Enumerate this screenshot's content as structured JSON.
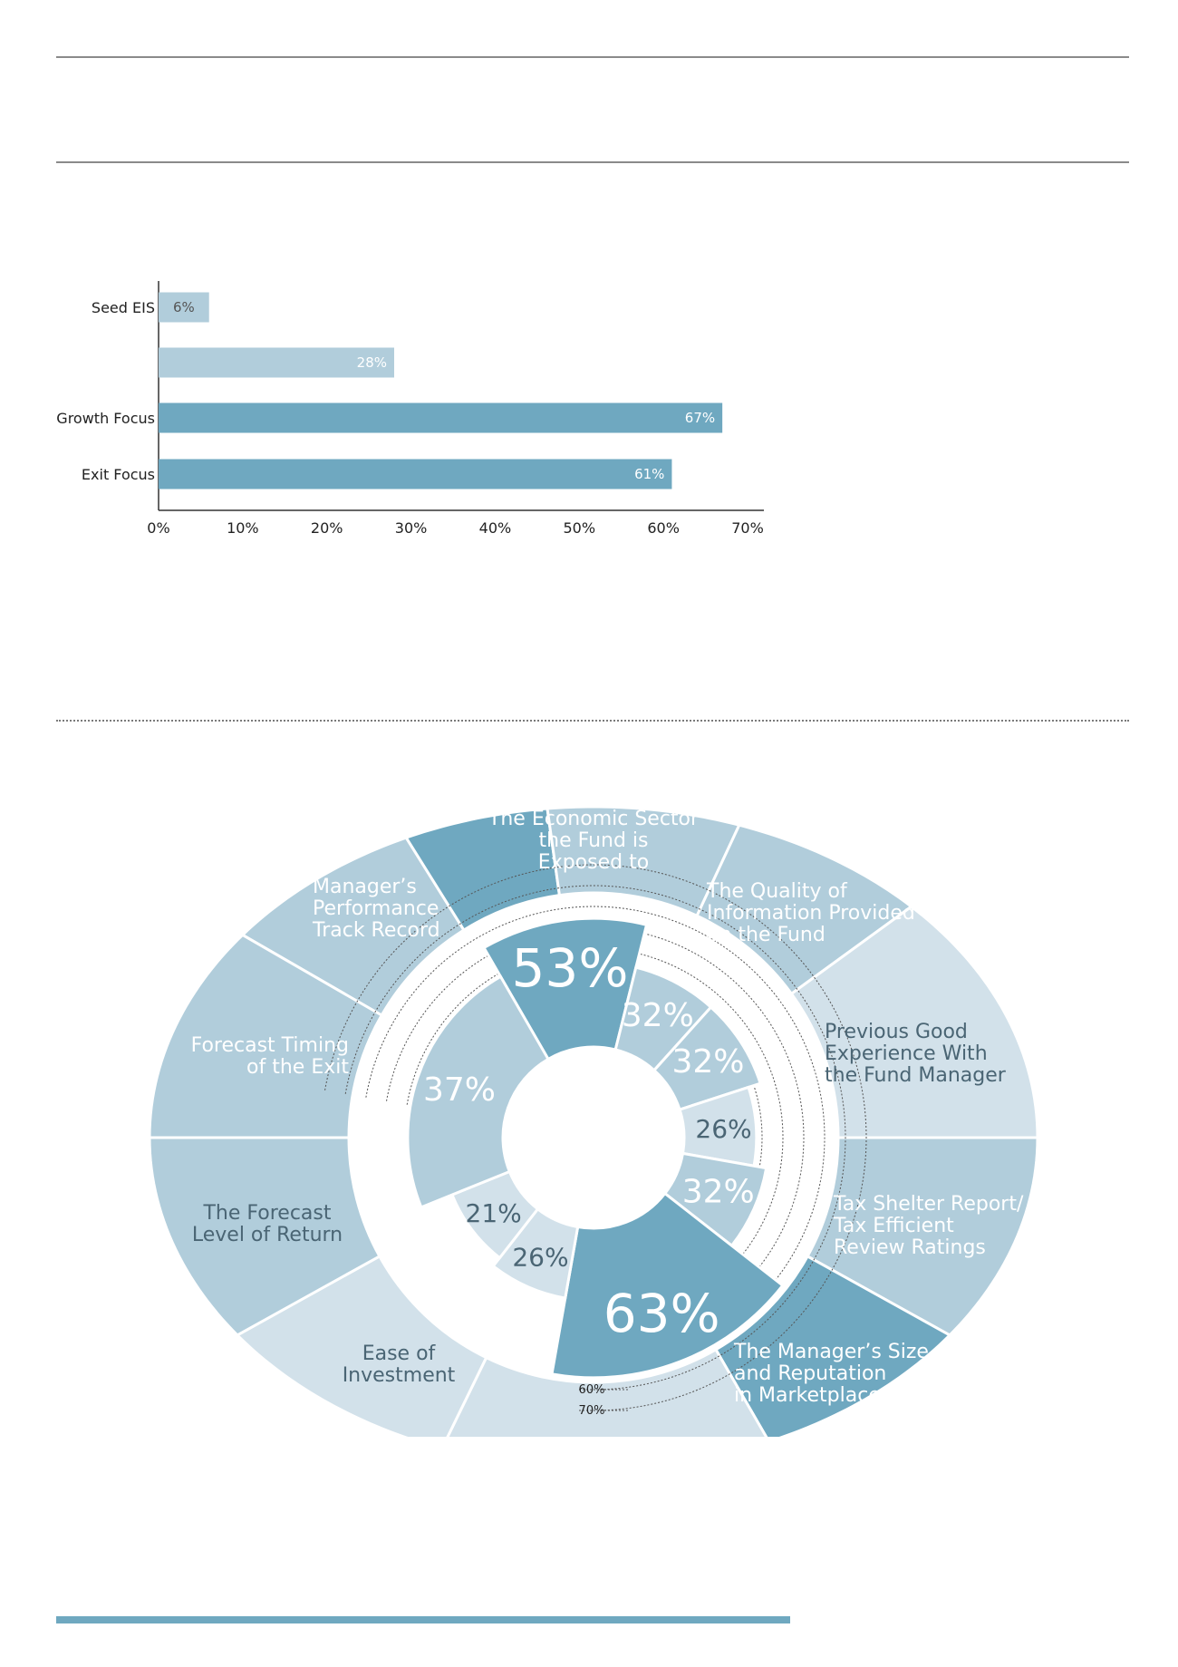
{
  "colors": {
    "light": "#b1cddb",
    "dark": "#6fa8c0",
    "pale": "#d2e1ea",
    "text_dark": "#4a6574",
    "rule": "#8a8a8a"
  },
  "chart_data": [
    {
      "type": "bar",
      "orientation": "horizontal",
      "categories": [
        "Seed EIS",
        "",
        "Growth Focus",
        "Exit Focus"
      ],
      "values": [
        6,
        28,
        67,
        61
      ],
      "value_labels": [
        "6%",
        "28%",
        "67%",
        "61%"
      ],
      "xticks": [
        "0%",
        "10%",
        "20%",
        "30%",
        "40%",
        "50%",
        "60%",
        "70%"
      ],
      "xlim": [
        0,
        70
      ],
      "title": "",
      "xlabel": "",
      "ylabel": ""
    },
    {
      "type": "radial_bar",
      "rings": [
        "10%",
        "20%",
        "30%",
        "40%",
        "50%",
        "60%",
        "70%"
      ],
      "rlim": [
        0,
        70
      ],
      "segments": [
        {
          "name": "Manager’s Performance Track Record",
          "label_lines": [
            "Manager’s",
            "Performance",
            "Track Record"
          ],
          "value": 53,
          "value_label": "53%"
        },
        {
          "name": "The Economic Sector the Fund is Exposed to",
          "label_lines": [
            "The Economic Sector",
            "the Fund is",
            "Exposed to"
          ],
          "value": 32,
          "value_label": "32%"
        },
        {
          "name": "The Quality of Information Provided on the Fund",
          "label_lines": [
            "The Quality of",
            "Information Provided",
            "on the Fund"
          ],
          "value": 32,
          "value_label": "32%"
        },
        {
          "name": "Previous Good Experience With the Fund Manager",
          "label_lines": [
            "Previous Good",
            "Experience With",
            "the Fund Manager"
          ],
          "value": 26,
          "value_label": "26%"
        },
        {
          "name": "Tax Shelter Report/ Tax Efficient Review Ratings",
          "label_lines": [
            "Tax Shelter Report/",
            "Tax Efficient",
            "Review Ratings"
          ],
          "value": 32,
          "value_label": "32%"
        },
        {
          "name": "The Manager’s Size and Reputation in Marketplace",
          "label_lines": [
            "The Manager’s Size",
            "and Reputation",
            "in Marketplace"
          ],
          "value": 63,
          "value_label": "63%"
        },
        {
          "name": "Ease of Investment",
          "label_lines": [
            "Ease of",
            "Investment"
          ],
          "value": 26,
          "value_label": "26%"
        },
        {
          "name": "The Forecast Level of Return",
          "label_lines": [
            "The Forecast",
            "Level of Return"
          ],
          "value": 21,
          "value_label": "21%"
        },
        {
          "name": "Forecast Timing of the Exit",
          "label_lines": [
            "Forecast Timing",
            "of the Exit"
          ],
          "value": 37,
          "value_label": "37%"
        }
      ]
    }
  ]
}
